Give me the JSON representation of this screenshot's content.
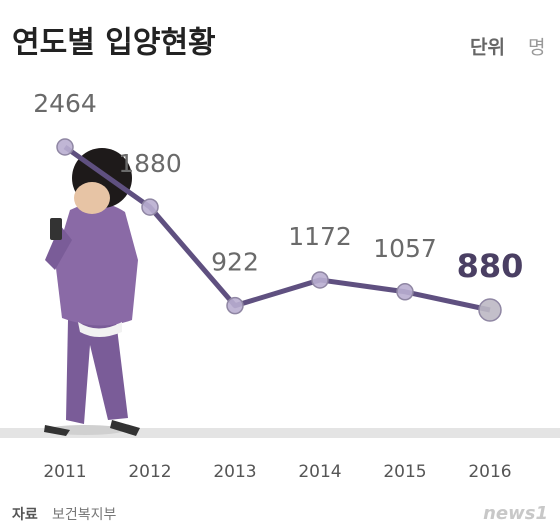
{
  "chart_data": {
    "type": "line",
    "title": "연도별 입양현황",
    "unit_label": "단위",
    "unit": "명",
    "categories": [
      "2011",
      "2012",
      "2013",
      "2014",
      "2015",
      "2016"
    ],
    "series": [
      {
        "values": [
          2464,
          1880,
          922,
          1172,
          1057,
          880
        ],
        "color": "#5f5080"
      }
    ],
    "source_label": "자료",
    "source": "보건복지부"
  },
  "logo": "news1"
}
